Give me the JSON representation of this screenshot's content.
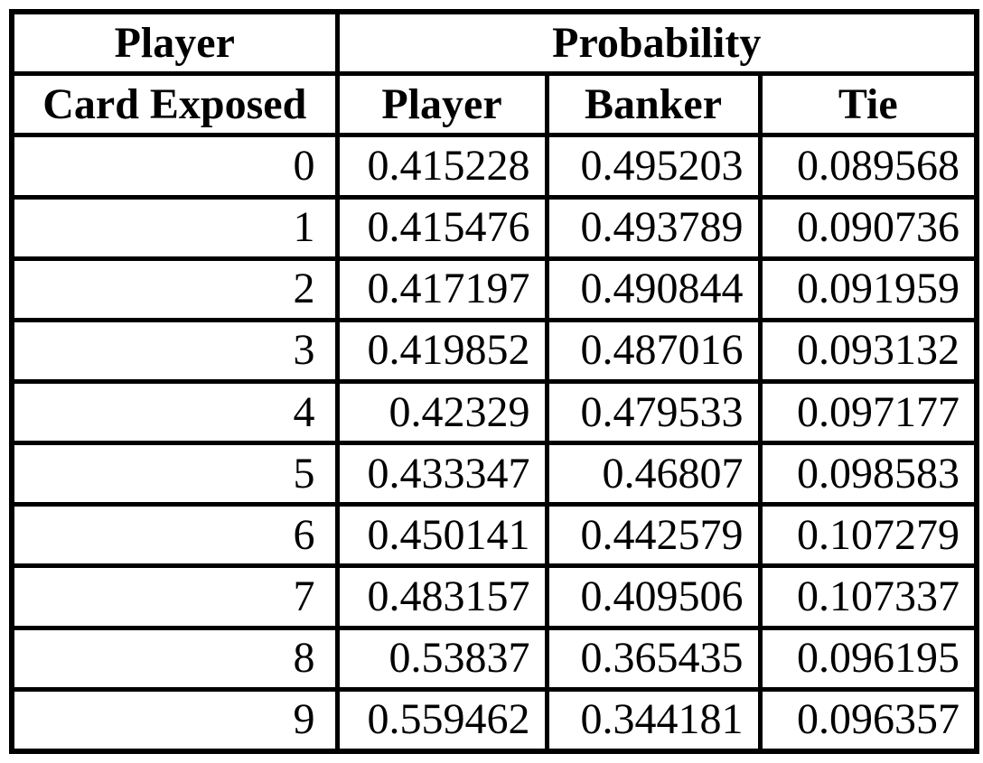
{
  "page": {
    "background_color": "#ffffff",
    "border_color": "#000000",
    "text_color": "#000000"
  },
  "table": {
    "group_headers": {
      "left": "Player",
      "right": "Probability"
    },
    "column_headers": {
      "card_exposed": "Card Exposed",
      "player": "Player",
      "banker": "Banker",
      "tie": "Tie"
    },
    "rows": [
      {
        "card": "0",
        "player": "0.415228",
        "banker": "0.495203",
        "tie": "0.089568"
      },
      {
        "card": "1",
        "player": "0.415476",
        "banker": "0.493789",
        "tie": "0.090736"
      },
      {
        "card": "2",
        "player": "0.417197",
        "banker": "0.490844",
        "tie": "0.091959"
      },
      {
        "card": "3",
        "player": "0.419852",
        "banker": "0.487016",
        "tie": "0.093132"
      },
      {
        "card": "4",
        "player": "0.42329",
        "banker": "0.479533",
        "tie": "0.097177"
      },
      {
        "card": "5",
        "player": "0.433347",
        "banker": "0.46807",
        "tie": "0.098583"
      },
      {
        "card": "6",
        "player": "0.450141",
        "banker": "0.442579",
        "tie": "0.107279"
      },
      {
        "card": "7",
        "player": "0.483157",
        "banker": "0.409506",
        "tie": "0.107337"
      },
      {
        "card": "8",
        "player": "0.53837",
        "banker": "0.365435",
        "tie": "0.096195"
      },
      {
        "card": "9",
        "player": "0.559462",
        "banker": "0.344181",
        "tie": "0.096357"
      }
    ]
  }
}
